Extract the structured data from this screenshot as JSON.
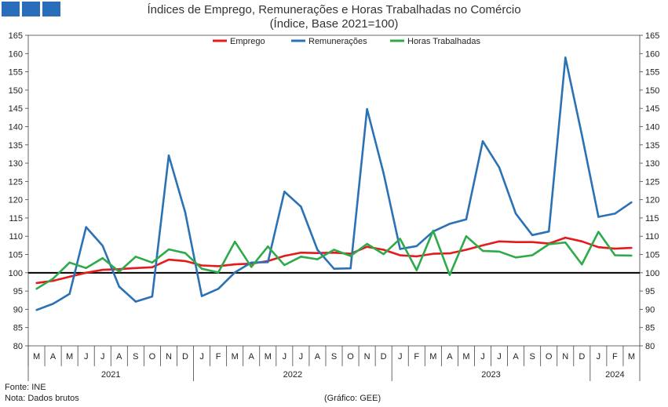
{
  "title": "Índices de Emprego, Remunerações e Horas Trabalhadas no Comércio",
  "subtitle": "(Índice, Base 2021=100)",
  "footer": {
    "source": "Fonte: INE",
    "note": "Nota: Dados brutos",
    "credit": "(Gráfico: GEE)"
  },
  "colors": {
    "logo": "#2a6ebb",
    "emprego": "#e41a1c",
    "remuneracoes": "#2a72b5",
    "horas": "#2eaa4a",
    "reference": "#000000"
  },
  "chart_data": {
    "type": "line",
    "title": "Índices de Emprego, Remunerações e Horas Trabalhadas no Comércio",
    "subtitle": "(Índice, Base 2021=100)",
    "ylim": [
      80,
      165
    ],
    "yticks": [
      80,
      85,
      90,
      95,
      100,
      105,
      110,
      115,
      120,
      125,
      130,
      135,
      140,
      145,
      150,
      155,
      160,
      165
    ],
    "reference_line": 100,
    "legend_position": "top-center",
    "grid": false,
    "categories": [
      "M",
      "A",
      "M",
      "J",
      "J",
      "A",
      "S",
      "O",
      "N",
      "D",
      "J",
      "F",
      "M",
      "A",
      "M",
      "J",
      "J",
      "A",
      "S",
      "O",
      "N",
      "D",
      "J",
      "F",
      "M",
      "A",
      "M",
      "J",
      "J",
      "A",
      "S",
      "O",
      "N",
      "D",
      "J",
      "F",
      "M"
    ],
    "years": [
      {
        "label": "2021",
        "span": 10
      },
      {
        "label": "2022",
        "span": 12
      },
      {
        "label": "2023",
        "span": 12
      },
      {
        "label": "2024",
        "span": 3
      }
    ],
    "series": [
      {
        "name": "Emprego",
        "color": "#e41a1c",
        "values": [
          97.2,
          97.8,
          98.9,
          100.0,
          100.8,
          101.0,
          101.3,
          101.5,
          103.6,
          103.2,
          102.0,
          101.8,
          102.3,
          102.5,
          103.2,
          104.6,
          105.5,
          105.4,
          105.5,
          105.2,
          107.1,
          106.3,
          104.8,
          104.5,
          105.2,
          105.3,
          106.3,
          107.5,
          108.6,
          108.4,
          108.4,
          108.0,
          109.6,
          108.6,
          107.0,
          106.6,
          106.8
        ]
      },
      {
        "name": "Remunerações",
        "color": "#2a72b5",
        "values": [
          89.8,
          91.5,
          94.2,
          112.5,
          107.4,
          96.2,
          92.1,
          93.5,
          132.1,
          116.5,
          93.6,
          95.6,
          100.1,
          102.8,
          102.9,
          122.2,
          118.1,
          106.3,
          101.1,
          101.2,
          144.8,
          127.2,
          106.5,
          107.3,
          111.3,
          113.4,
          114.6,
          136.0,
          128.8,
          116.2,
          110.3,
          111.3,
          158.9,
          137.7,
          115.3,
          116.2,
          119.3
        ]
      },
      {
        "name": "Horas Trabalhadas",
        "color": "#2eaa4a",
        "values": [
          95.6,
          98.4,
          102.8,
          101.3,
          104.0,
          100.3,
          104.4,
          102.8,
          106.4,
          105.4,
          101.1,
          100.1,
          108.5,
          101.6,
          107.2,
          102.1,
          104.4,
          103.7,
          106.3,
          104.6,
          107.9,
          105.1,
          109.3,
          100.7,
          111.5,
          99.4,
          110.0,
          106.0,
          105.8,
          104.2,
          104.8,
          107.8,
          108.3,
          102.3,
          111.2,
          104.8,
          104.7
        ]
      }
    ]
  }
}
